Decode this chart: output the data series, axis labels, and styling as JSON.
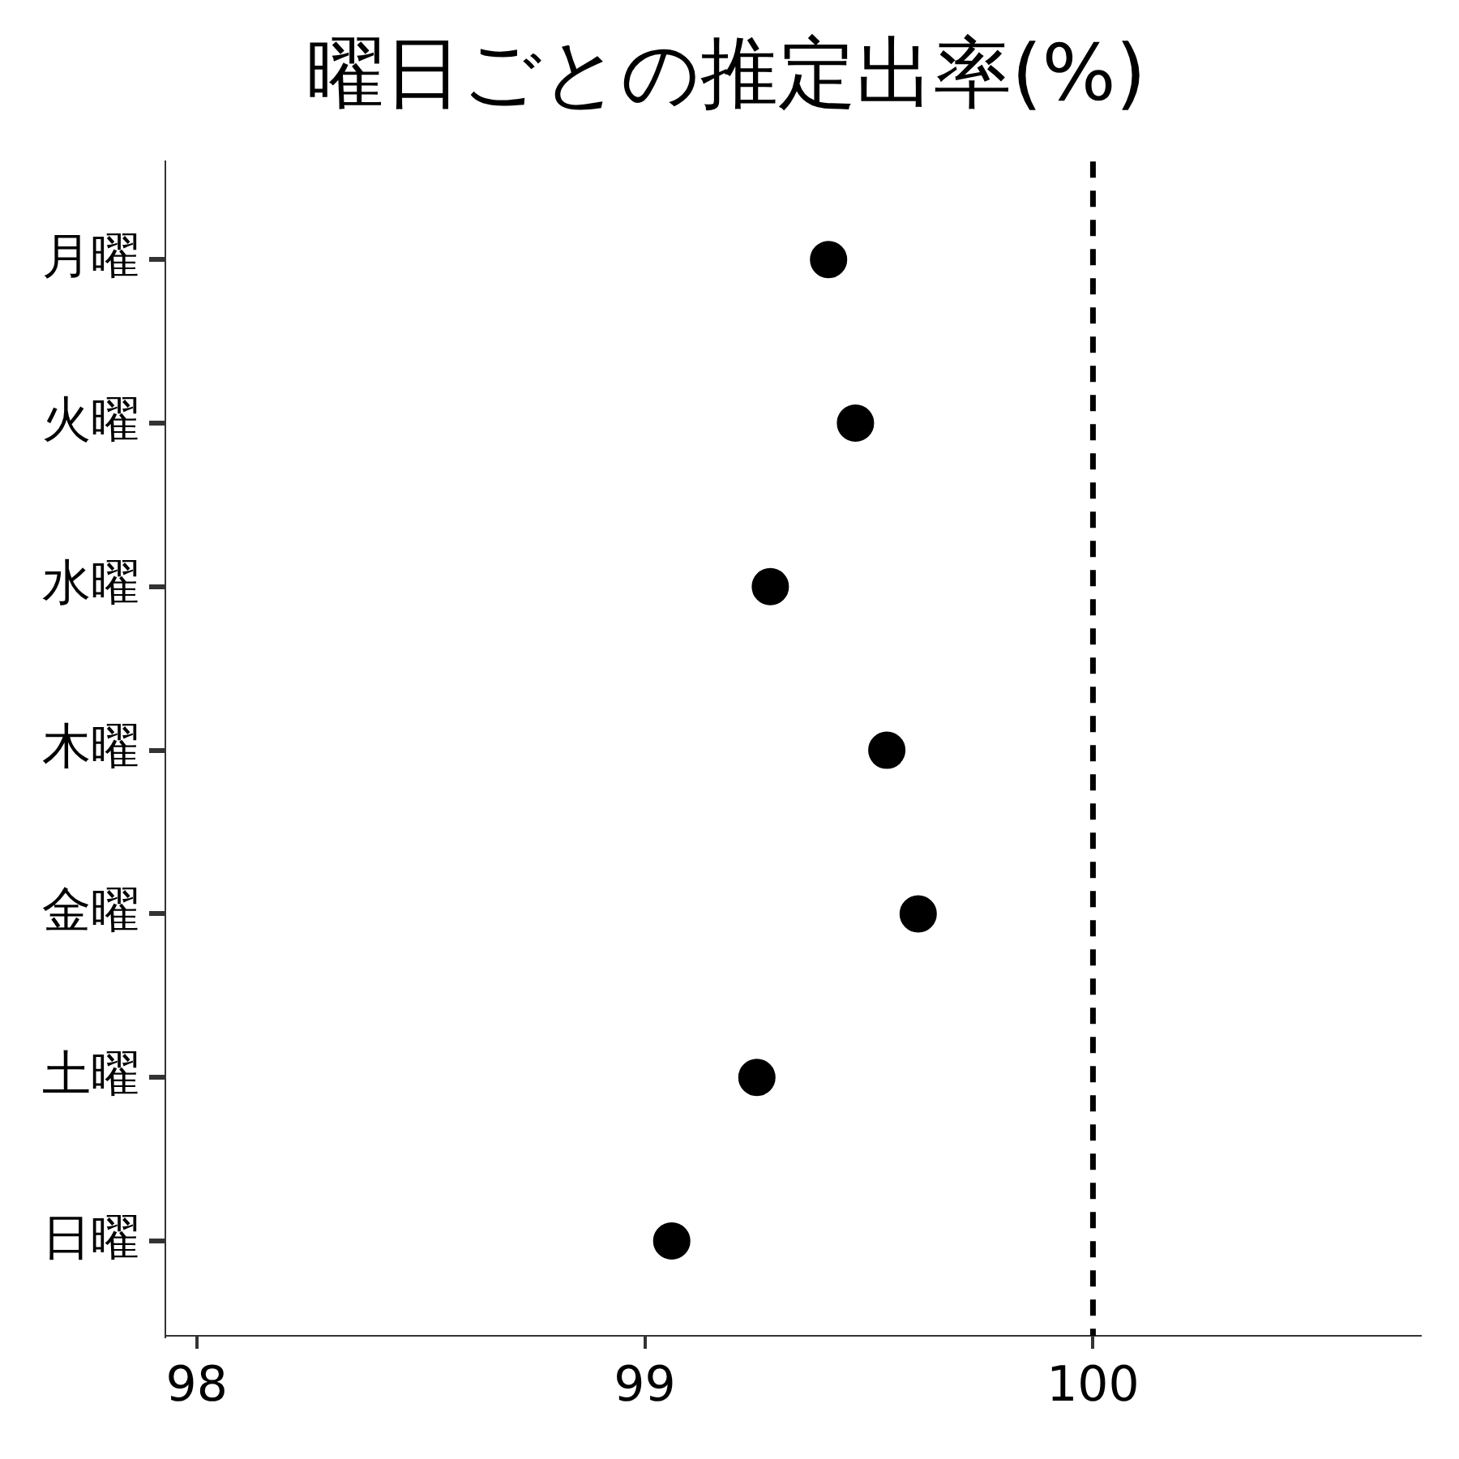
{
  "chart_data": {
    "type": "scatter",
    "title": "曜日ごとの推定出率(%)",
    "orientation": "horizontal",
    "categories": [
      "月曜",
      "火曜",
      "水曜",
      "木曜",
      "金曜",
      "土曜",
      "日曜"
    ],
    "series": [
      {
        "color": "#000000",
        "values": [
          99.41,
          99.47,
          99.28,
          99.54,
          99.61,
          99.25,
          99.06
        ]
      }
    ],
    "xlim": [
      97.93,
      100.73
    ],
    "xticks": [
      98,
      99,
      100
    ],
    "marker": "circle",
    "grid": false,
    "ref_lines": [
      {
        "axis": "x",
        "value": 100,
        "color": "#000000",
        "line_style": "dashed"
      }
    ]
  }
}
